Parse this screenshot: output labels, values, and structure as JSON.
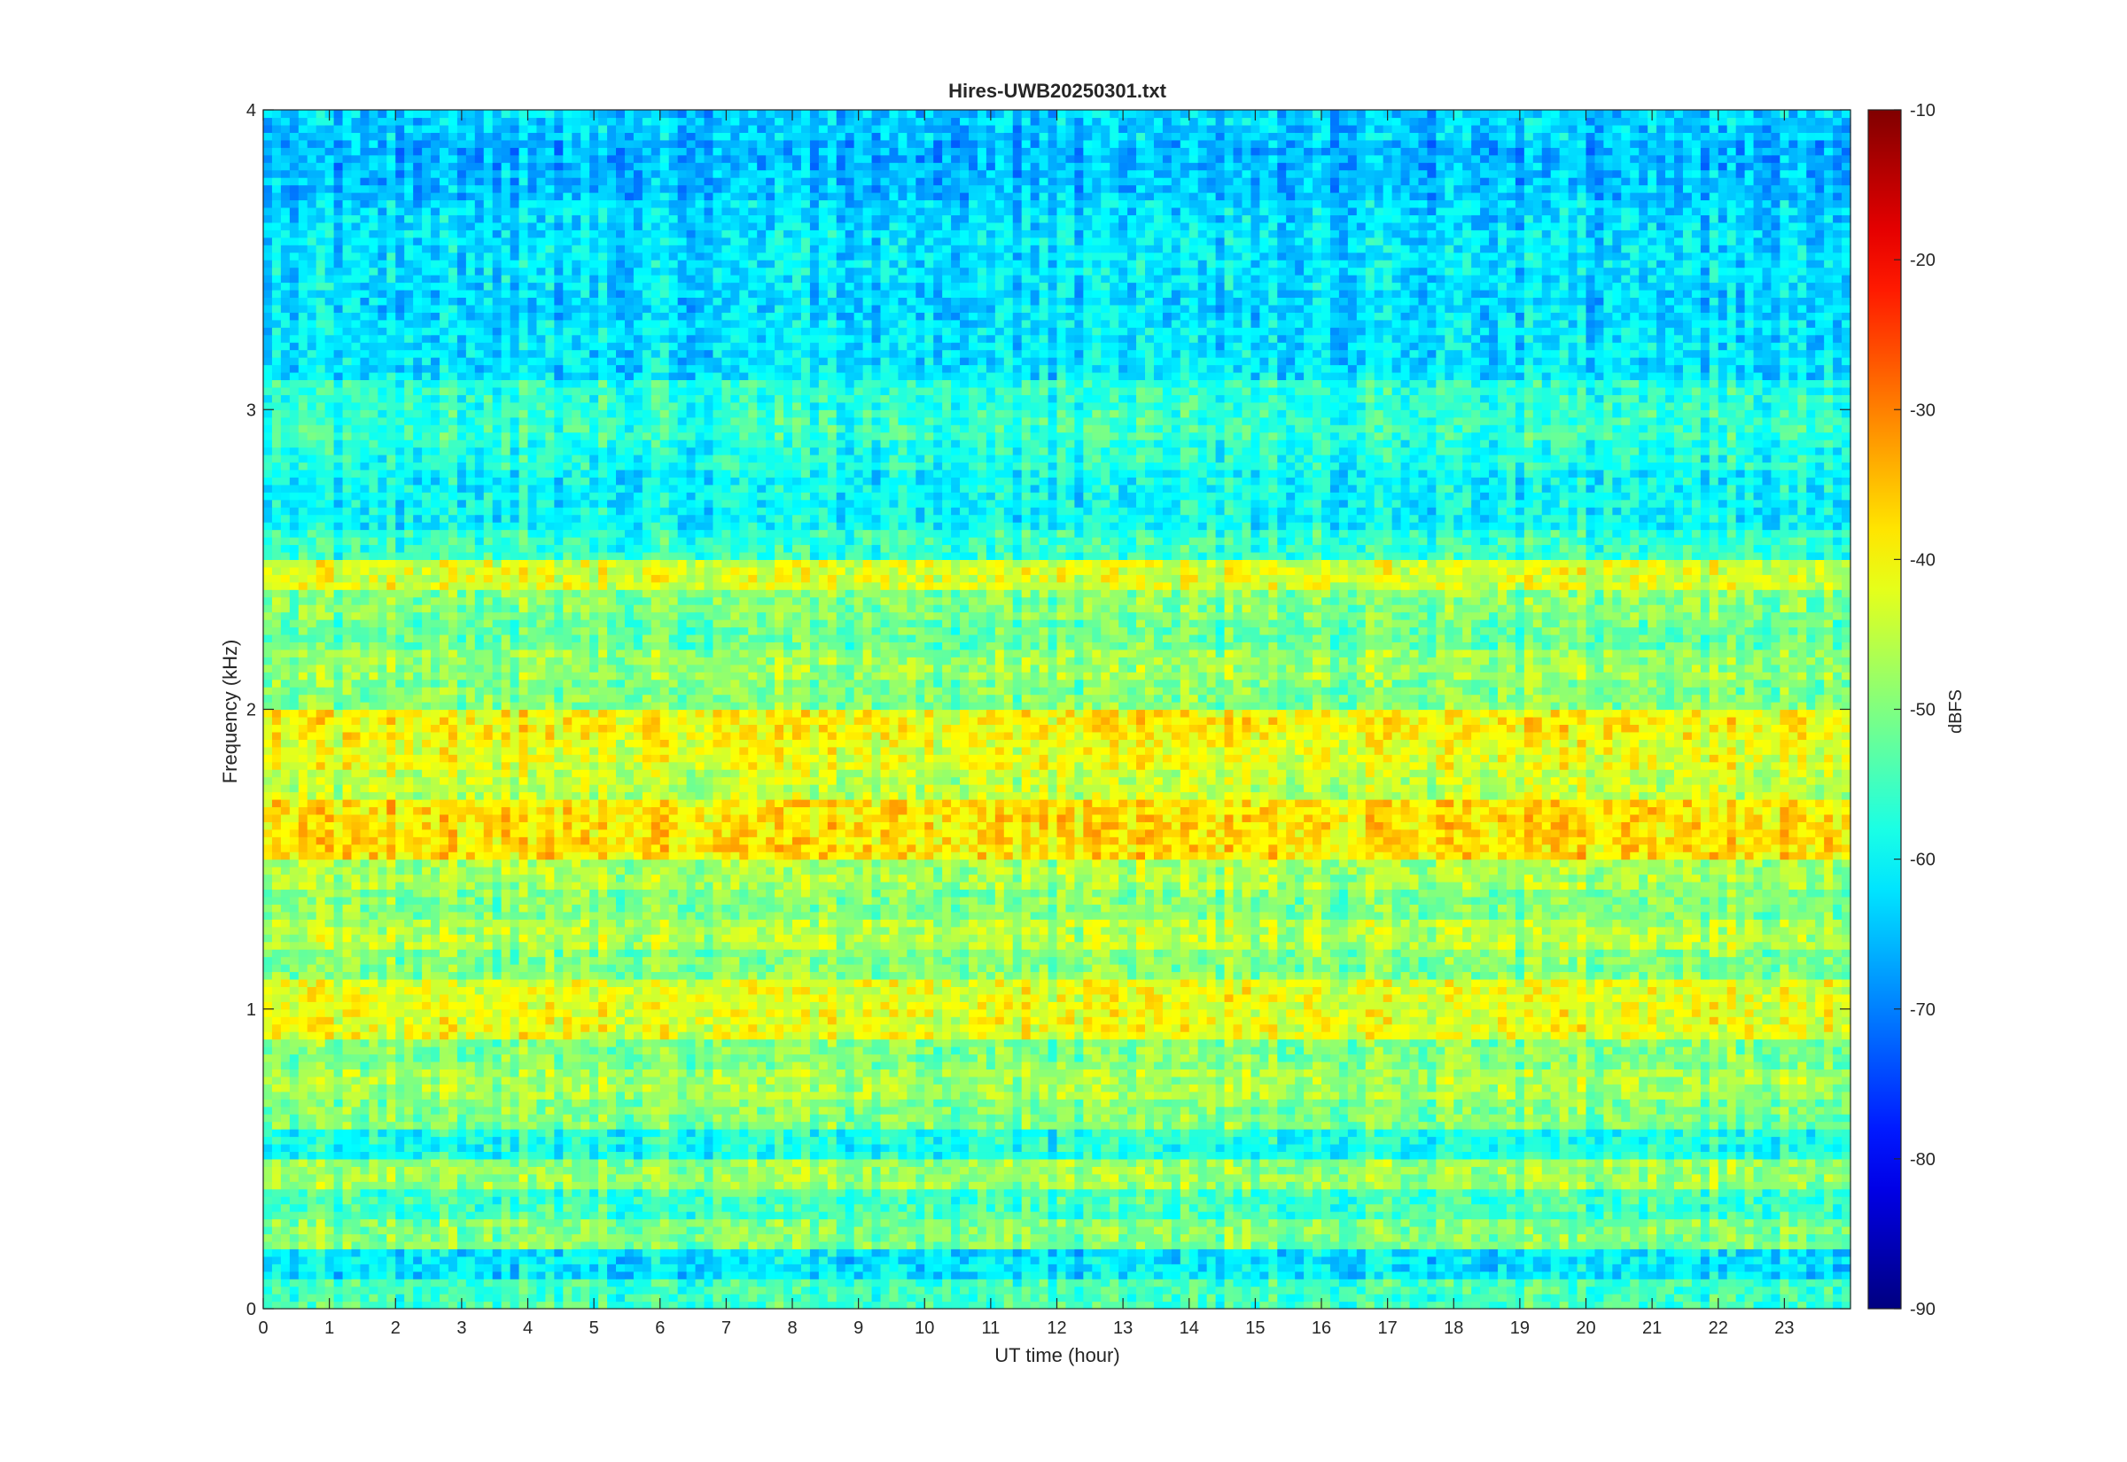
{
  "chart_data": {
    "type": "heatmap",
    "title": "Hires-UWB20250301.txt",
    "xlabel": "UT time (hour)",
    "ylabel": "Frequency (kHz)",
    "xlim": [
      0,
      24
    ],
    "ylim": [
      0,
      4
    ],
    "x_ticks": [
      "0",
      "1",
      "2",
      "3",
      "4",
      "5",
      "6",
      "7",
      "8",
      "9",
      "10",
      "11",
      "12",
      "13",
      "14",
      "15",
      "16",
      "17",
      "18",
      "19",
      "20",
      "21",
      "22",
      "23"
    ],
    "y_ticks": [
      "0",
      "1",
      "2",
      "3",
      "4"
    ],
    "colorbar": {
      "label": "dBFS",
      "limits": [
        -90,
        -10
      ],
      "ticks": [
        "-10",
        "-20",
        "-30",
        "-40",
        "-50",
        "-60",
        "-70",
        "-80",
        "-90"
      ],
      "colormap": "jet"
    },
    "bands": [
      {
        "freq_khz": 0.05,
        "level_dbfs": -55
      },
      {
        "freq_khz": 0.15,
        "level_dbfs": -62
      },
      {
        "freq_khz": 0.25,
        "level_dbfs": -50
      },
      {
        "freq_khz": 0.35,
        "level_dbfs": -55
      },
      {
        "freq_khz": 0.45,
        "level_dbfs": -48
      },
      {
        "freq_khz": 0.55,
        "level_dbfs": -58
      },
      {
        "freq_khz": 0.65,
        "level_dbfs": -50
      },
      {
        "freq_khz": 0.75,
        "level_dbfs": -47
      },
      {
        "freq_khz": 0.85,
        "level_dbfs": -50
      },
      {
        "freq_khz": 0.95,
        "level_dbfs": -42
      },
      {
        "freq_khz": 1.05,
        "level_dbfs": -42
      },
      {
        "freq_khz": 1.15,
        "level_dbfs": -50
      },
      {
        "freq_khz": 1.25,
        "level_dbfs": -46
      },
      {
        "freq_khz": 1.35,
        "level_dbfs": -50
      },
      {
        "freq_khz": 1.45,
        "level_dbfs": -47
      },
      {
        "freq_khz": 1.55,
        "level_dbfs": -38
      },
      {
        "freq_khz": 1.65,
        "level_dbfs": -38
      },
      {
        "freq_khz": 1.75,
        "level_dbfs": -45
      },
      {
        "freq_khz": 1.85,
        "level_dbfs": -42
      },
      {
        "freq_khz": 1.95,
        "level_dbfs": -40
      },
      {
        "freq_khz": 2.05,
        "level_dbfs": -50
      },
      {
        "freq_khz": 2.15,
        "level_dbfs": -48
      },
      {
        "freq_khz": 2.25,
        "level_dbfs": -52
      },
      {
        "freq_khz": 2.35,
        "level_dbfs": -50
      },
      {
        "freq_khz": 2.45,
        "level_dbfs": -43
      },
      {
        "freq_khz": 2.55,
        "level_dbfs": -56
      },
      {
        "freq_khz": 2.65,
        "level_dbfs": -60
      },
      {
        "freq_khz": 2.75,
        "level_dbfs": -60
      },
      {
        "freq_khz": 2.85,
        "level_dbfs": -58
      },
      {
        "freq_khz": 2.95,
        "level_dbfs": -56
      },
      {
        "freq_khz": 3.05,
        "level_dbfs": -57
      },
      {
        "freq_khz": 3.15,
        "level_dbfs": -62
      },
      {
        "freq_khz": 3.25,
        "level_dbfs": -62
      },
      {
        "freq_khz": 3.35,
        "level_dbfs": -63
      },
      {
        "freq_khz": 3.45,
        "level_dbfs": -62
      },
      {
        "freq_khz": 3.55,
        "level_dbfs": -62
      },
      {
        "freq_khz": 3.65,
        "level_dbfs": -63
      },
      {
        "freq_khz": 3.75,
        "level_dbfs": -65
      },
      {
        "freq_khz": 3.85,
        "level_dbfs": -66
      },
      {
        "freq_khz": 3.95,
        "level_dbfs": -64
      }
    ]
  }
}
